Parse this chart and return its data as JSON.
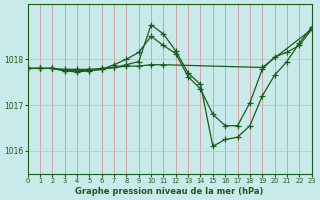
{
  "bg_color": "#c8eaea",
  "grid_color_major": "#b0cccc",
  "grid_color_minor": "#d8eeee",
  "line_color": "#1a5c1a",
  "xlabel": "Graphe pression niveau de la mer (hPa)",
  "xlim": [
    0,
    23
  ],
  "ylim": [
    1015.5,
    1019.2
  ],
  "yticks": [
    1016,
    1017,
    1018
  ],
  "xticks": [
    0,
    1,
    2,
    3,
    4,
    5,
    6,
    7,
    8,
    9,
    10,
    11,
    12,
    13,
    14,
    15,
    16,
    17,
    18,
    19,
    20,
    21,
    22,
    23
  ],
  "series1_x": [
    0,
    1,
    2,
    3,
    4,
    5,
    6,
    7,
    8,
    9,
    10,
    11,
    12,
    13,
    14,
    15,
    16,
    17,
    18,
    19,
    20,
    21,
    22,
    23
  ],
  "series1_y": [
    1017.8,
    1017.8,
    1017.8,
    1017.75,
    1017.75,
    1017.75,
    1017.78,
    1017.82,
    1017.88,
    1017.95,
    1018.75,
    1018.55,
    1018.18,
    1017.7,
    1017.45,
    1016.1,
    1016.25,
    1016.3,
    1016.55,
    1017.2,
    1017.65,
    1017.95,
    1018.35,
    1018.7
  ],
  "series2_x": [
    0,
    1,
    2,
    3,
    4,
    5,
    6,
    7,
    8,
    9,
    10,
    11,
    12,
    13,
    14,
    15,
    16,
    17,
    18,
    19,
    20,
    21,
    22,
    23
  ],
  "series2_y": [
    1017.8,
    1017.8,
    1017.8,
    1017.75,
    1017.72,
    1017.75,
    1017.78,
    1017.88,
    1018.0,
    1018.15,
    1018.5,
    1018.3,
    1018.12,
    1017.62,
    1017.35,
    1016.8,
    1016.55,
    1016.55,
    1017.05,
    1017.78,
    1018.05,
    1018.15,
    1018.3,
    1018.65
  ],
  "series3_x": [
    0,
    1,
    2,
    3,
    4,
    5,
    6,
    7,
    8,
    9,
    10,
    11,
    19,
    23
  ],
  "series3_y": [
    1017.8,
    1017.8,
    1017.8,
    1017.78,
    1017.78,
    1017.78,
    1017.8,
    1017.82,
    1017.85,
    1017.85,
    1017.88,
    1017.88,
    1017.82,
    1018.65
  ]
}
